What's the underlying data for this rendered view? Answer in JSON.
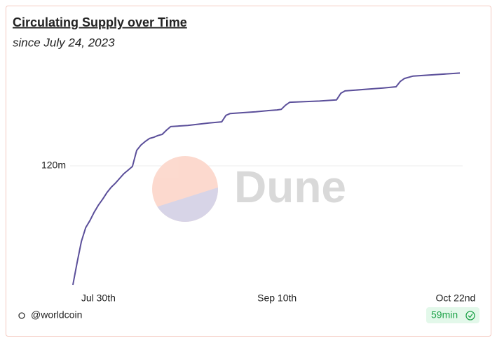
{
  "chart_data": {
    "type": "line",
    "title": "Circulating Supply over Time",
    "subtitle": "since July 24, 2023",
    "watermark": "Dune",
    "source": "@worldcoin",
    "refresh": "59min",
    "x": [
      "07-24",
      "07-25",
      "07-26",
      "07-27",
      "07-28",
      "07-29",
      "07-30",
      "07-31",
      "08-01",
      "08-02",
      "08-03",
      "08-04",
      "08-05",
      "08-06",
      "08-07",
      "08-08",
      "08-09",
      "08-10",
      "08-11",
      "08-12",
      "08-13",
      "08-14",
      "08-15",
      "08-16",
      "08-20",
      "08-25",
      "08-28",
      "08-29",
      "08-30",
      "09-05",
      "09-08",
      "09-10",
      "09-11",
      "09-12",
      "09-13",
      "09-20",
      "09-24",
      "09-25",
      "09-26",
      "10-05",
      "10-08",
      "10-09",
      "10-10",
      "10-12",
      "10-23"
    ],
    "series": [
      {
        "name": "Circulating Supply",
        "color": "#5b4f9a",
        "values": [
          100.0,
          103.8,
          107.3,
          109.6,
          110.8,
          112.2,
          113.4,
          114.4,
          115.5,
          116.4,
          117.1,
          117.9,
          118.7,
          119.3,
          119.9,
          122.6,
          123.5,
          124.1,
          124.6,
          124.8,
          125.1,
          125.3,
          126.0,
          126.6,
          126.8,
          127.2,
          127.4,
          128.5,
          128.8,
          129.1,
          129.3,
          129.4,
          129.5,
          130.2,
          130.7,
          130.9,
          131.1,
          132.2,
          132.6,
          133.1,
          133.3,
          134.2,
          134.7,
          135.1,
          135.6
        ]
      }
    ],
    "xlim": [
      "07-24",
      "10-23"
    ],
    "xticks": [
      {
        "value": "07-30",
        "label": "Jul 30th"
      },
      {
        "value": "09-10",
        "label": "Sep 10th"
      },
      {
        "value": "10-22",
        "label": "Oct 22nd"
      }
    ],
    "ylim": [
      100,
      137.3
    ],
    "yticks": [
      {
        "value": 120,
        "label": "120m"
      }
    ],
    "grid": true
  }
}
